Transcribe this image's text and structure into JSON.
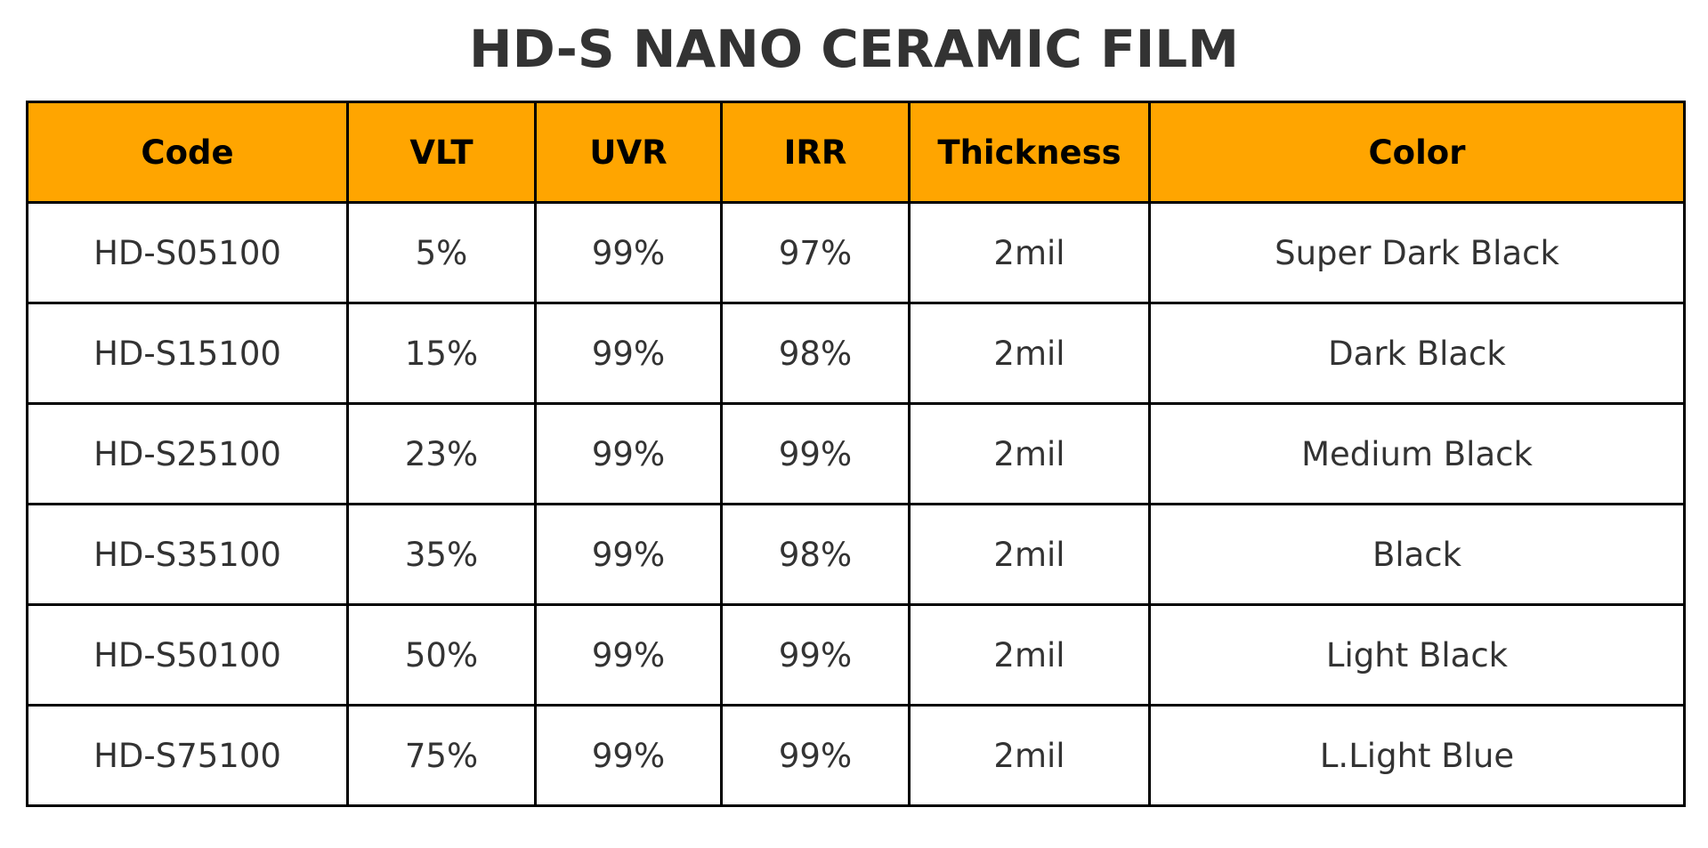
{
  "title": "HD-S NANO CERAMIC FILM",
  "table": {
    "header": [
      "Code",
      "VLT",
      "UVR",
      "IRR",
      "Thickness",
      "Color"
    ],
    "rows": [
      [
        "HD-S05100",
        "5%",
        "99%",
        "97%",
        "2mil",
        "Super Dark Black"
      ],
      [
        "HD-S15100",
        "15%",
        "99%",
        "98%",
        "2mil",
        "Dark Black"
      ],
      [
        "HD-S25100",
        "23%",
        "99%",
        "99%",
        "2mil",
        "Medium Black"
      ],
      [
        "HD-S35100",
        "35%",
        "99%",
        "98%",
        "2mil",
        "Black"
      ],
      [
        "HD-S50100",
        "50%",
        "99%",
        "99%",
        "2mil",
        "Light Black"
      ],
      [
        "HD-S75100",
        "75%",
        "99%",
        "99%",
        "2mil",
        "L.Light Blue"
      ]
    ]
  }
}
